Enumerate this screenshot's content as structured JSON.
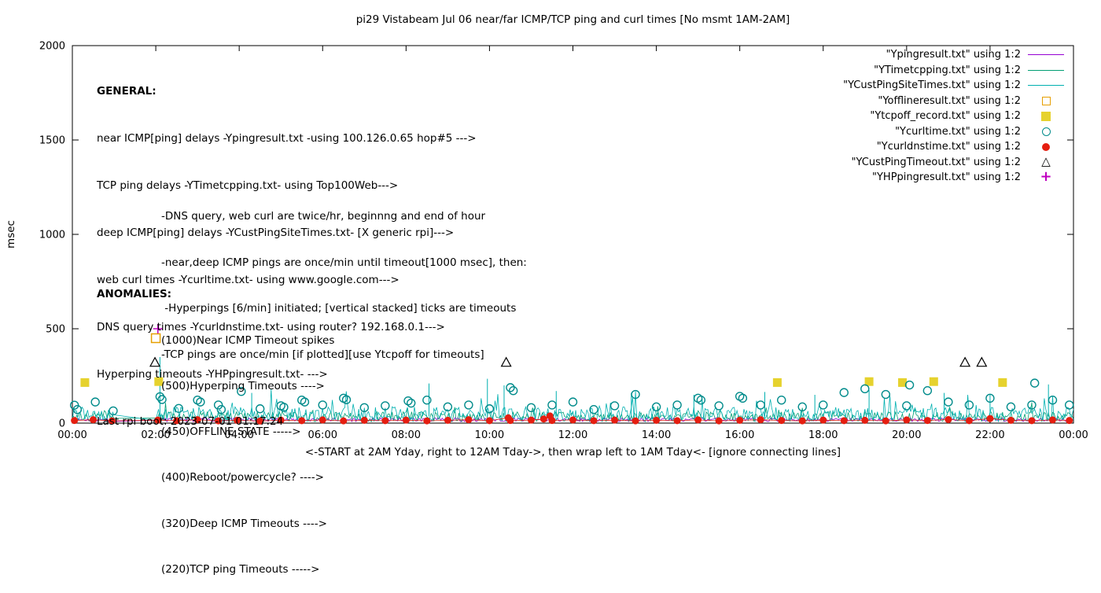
{
  "title": "pi29 Vistabeam Jul 06  near/far ICMP/TCP ping and curl times [No msmt 1AM-2AM]",
  "ylabel": "msec",
  "xlabel": "<-START at 2AM Yday, right to 12AM Tday->, then wrap left to 1AM Tday<- [ignore connecting lines]",
  "general": {
    "heading": "GENERAL:",
    "lines": [
      "near ICMP[ping] delays -Ypingresult.txt -using 100.126.0.65 hop#5 --->",
      "TCP ping delays -YTimetcpping.txt- using Top100Web--->",
      "deep ICMP[ping] delays -YCustPingSiteTimes.txt- [X generic rpi]--->",
      "web curl times -Ycurltime.txt- using www.google.com--->",
      "DNS query times -Ycurldnstime.txt- using router? 192.168.0.1--->",
      "Hyperping timeouts -YHPpingresult.txt- --->",
      "Last rpi boot: 2023-07-01 01:17:24"
    ],
    "indented": [
      "-DNS query, web curl are twice/hr, beginnng and end of hour",
      "-near,deep ICMP pings are once/min until timeout[1000 msec], then:",
      " -Hyperpings [6/min] initiated; [vertical stacked] ticks are timeouts",
      "-TCP pings are once/min [if plotted][use Ytcpoff for timeouts]"
    ]
  },
  "anomalies": {
    "heading": "ANOMALIES:",
    "lines": [
      "(1000)Near ICMP Timeout spikes",
      "(500)Hyperping Timeouts ---->",
      "(450)OFFLINE STATE ----->",
      "(400)Reboot/powercycle? ---->",
      "(320)Deep ICMP Timeouts ---->",
      "(220)TCP ping Timeouts ----->"
    ]
  },
  "legend": [
    {
      "label": "\"Ypingresult.txt\" using 1:2",
      "symbol": "line",
      "color": "#9400d3"
    },
    {
      "label": "\"YTimetcpping.txt\" using 1:2",
      "symbol": "line",
      "color": "#009e73"
    },
    {
      "label": "\"YCustPingSiteTimes.txt\" using 1:2",
      "symbol": "line",
      "color": "#00b0b0"
    },
    {
      "label": "\"Yofflineresult.txt\" using 1:2",
      "symbol": "open-square",
      "color": "#e69f00"
    },
    {
      "label": "\"Ytcpoff_record.txt\" using 1:2",
      "symbol": "filled-square",
      "color": "#e6d22e"
    },
    {
      "label": "\"Ycurltime.txt\" using 1:2",
      "symbol": "open-circle",
      "color": "#008b8b"
    },
    {
      "label": "\"Ycurldnstime.txt\" using 1:2",
      "symbol": "filled-circle",
      "color": "#e51e10"
    },
    {
      "label": "\"YCustPingTimeout.txt\" using 1:2",
      "symbol": "open-triangle",
      "color": "#000000"
    },
    {
      "label": "\"YHPpingresult.txt\" using 1:2",
      "symbol": "plus",
      "color": "#bf00bf"
    }
  ],
  "chart_data": {
    "type": "line",
    "title": "pi29 Vistabeam Jul 06  near/far ICMP/TCP ping and curl times [No msmt 1AM-2AM]",
    "xlabel": "<-START at 2AM Yday, right to 12AM Tday->, then wrap left to 1AM Tday<- [ignore connecting lines]",
    "ylabel": "msec",
    "ylim": [
      0,
      2000
    ],
    "xlim_hours": [
      0,
      24
    ],
    "grid": false,
    "legend_position": "top-right",
    "x_tick_labels": [
      "00:00",
      "02:00",
      "04:00",
      "06:00",
      "08:00",
      "10:00",
      "12:00",
      "14:00",
      "16:00",
      "18:00",
      "20:00",
      "22:00",
      "00:00"
    ],
    "y_tick_labels": [
      0,
      500,
      1000,
      1500,
      2000
    ],
    "no_measurement_gap_hours": [
      1,
      2
    ],
    "series": [
      {
        "name": "Ypingresult.txt",
        "color": "#9400d3",
        "baseline": 18,
        "noise": 10,
        "seed": 11
      },
      {
        "name": "YTimetcpping.txt",
        "color": "#009e73",
        "baseline": 34,
        "noise": 26,
        "burst_prob": 0.05,
        "burst_amp": 70,
        "seed": 23
      },
      {
        "name": "YCustPingSiteTimes.txt",
        "color": "#00b0b0",
        "baseline": 46,
        "noise": 40,
        "burst_prob": 0.07,
        "burst_amp": 110,
        "seed": 37,
        "spikes": [
          [
            2.1,
            350
          ],
          [
            4.3,
            160
          ],
          [
            8.55,
            210
          ],
          [
            9.95,
            235
          ],
          [
            10.35,
            200
          ],
          [
            11.6,
            170
          ],
          [
            13.4,
            160
          ],
          [
            14.9,
            150
          ],
          [
            16.6,
            165
          ],
          [
            17.8,
            150
          ],
          [
            19.1,
            175
          ],
          [
            20.9,
            160
          ],
          [
            22.0,
            150
          ],
          [
            23.4,
            205
          ]
        ]
      }
    ],
    "markers": [
      {
        "name": "Yofflineresult.txt",
        "shape": "open-square",
        "color": "#e69f00",
        "points": [
          [
            2.0,
            450
          ]
        ]
      },
      {
        "name": "Ytcpoff_record.txt",
        "shape": "filled-square",
        "color": "#e6d22e",
        "points": [
          [
            0.3,
            215
          ],
          [
            2.07,
            220
          ],
          [
            16.9,
            215
          ],
          [
            19.1,
            220
          ],
          [
            19.9,
            215
          ],
          [
            20.65,
            220
          ],
          [
            22.3,
            215
          ]
        ]
      },
      {
        "name": "Ycurltime.txt",
        "shape": "open-circle",
        "color": "#008b8b",
        "points": [
          [
            0.05,
            95
          ],
          [
            0.12,
            72
          ],
          [
            0.55,
            112
          ],
          [
            0.98,
            65
          ],
          [
            2.1,
            140
          ],
          [
            2.15,
            125
          ],
          [
            2.55,
            78
          ],
          [
            3.0,
            122
          ],
          [
            3.07,
            112
          ],
          [
            3.5,
            96
          ],
          [
            3.57,
            72
          ],
          [
            4.05,
            168
          ],
          [
            4.5,
            76
          ],
          [
            5.0,
            92
          ],
          [
            5.07,
            84
          ],
          [
            5.5,
            122
          ],
          [
            5.57,
            112
          ],
          [
            6.0,
            96
          ],
          [
            6.5,
            132
          ],
          [
            6.57,
            124
          ],
          [
            7.0,
            82
          ],
          [
            7.5,
            92
          ],
          [
            8.05,
            118
          ],
          [
            8.12,
            106
          ],
          [
            8.5,
            122
          ],
          [
            9.0,
            86
          ],
          [
            9.5,
            96
          ],
          [
            10.0,
            76
          ],
          [
            10.5,
            188
          ],
          [
            10.57,
            172
          ],
          [
            11.0,
            82
          ],
          [
            11.5,
            96
          ],
          [
            12.0,
            112
          ],
          [
            12.5,
            72
          ],
          [
            13.0,
            92
          ],
          [
            13.5,
            152
          ],
          [
            14.0,
            86
          ],
          [
            14.5,
            96
          ],
          [
            15.0,
            132
          ],
          [
            15.07,
            122
          ],
          [
            15.5,
            92
          ],
          [
            16.0,
            142
          ],
          [
            16.07,
            132
          ],
          [
            16.5,
            96
          ],
          [
            17.0,
            122
          ],
          [
            17.5,
            86
          ],
          [
            18.0,
            96
          ],
          [
            18.5,
            162
          ],
          [
            19.0,
            182
          ],
          [
            19.5,
            152
          ],
          [
            20.0,
            92
          ],
          [
            20.07,
            202
          ],
          [
            20.5,
            172
          ],
          [
            21.0,
            112
          ],
          [
            21.5,
            96
          ],
          [
            22.0,
            132
          ],
          [
            22.5,
            86
          ],
          [
            23.0,
            96
          ],
          [
            23.07,
            212
          ],
          [
            23.5,
            122
          ],
          [
            23.9,
            96
          ]
        ]
      },
      {
        "name": "Ycurldnstime.txt",
        "shape": "filled-circle",
        "color": "#e51e10",
        "connect": true,
        "points": [
          [
            0.05,
            14
          ],
          [
            0.5,
            18
          ],
          [
            0.95,
            12
          ],
          [
            2.05,
            16
          ],
          [
            2.5,
            13
          ],
          [
            3.0,
            18
          ],
          [
            3.5,
            12
          ],
          [
            3.95,
            15
          ],
          [
            4.5,
            11
          ],
          [
            5.0,
            16
          ],
          [
            5.5,
            13
          ],
          [
            6.0,
            17
          ],
          [
            6.5,
            12
          ],
          [
            7.0,
            15
          ],
          [
            7.5,
            13
          ],
          [
            8.0,
            16
          ],
          [
            8.5,
            12
          ],
          [
            9.0,
            15
          ],
          [
            9.5,
            18
          ],
          [
            10.0,
            13
          ],
          [
            10.45,
            28
          ],
          [
            10.5,
            14
          ],
          [
            11.0,
            16
          ],
          [
            11.3,
            22
          ],
          [
            11.45,
            38
          ],
          [
            11.5,
            14
          ],
          [
            12.0,
            17
          ],
          [
            12.5,
            13
          ],
          [
            13.0,
            16
          ],
          [
            13.5,
            12
          ],
          [
            14.0,
            15
          ],
          [
            14.5,
            13
          ],
          [
            15.0,
            17
          ],
          [
            15.5,
            12
          ],
          [
            16.0,
            15
          ],
          [
            16.5,
            18
          ],
          [
            17.0,
            14
          ],
          [
            17.5,
            12
          ],
          [
            18.0,
            16
          ],
          [
            18.5,
            13
          ],
          [
            19.0,
            15
          ],
          [
            19.5,
            12
          ],
          [
            20.0,
            17
          ],
          [
            20.5,
            14
          ],
          [
            21.0,
            19
          ],
          [
            21.5,
            13
          ],
          [
            22.0,
            24
          ],
          [
            22.5,
            15
          ],
          [
            23.0,
            13
          ],
          [
            23.5,
            17
          ],
          [
            23.9,
            14
          ]
        ]
      },
      {
        "name": "YCustPingTimeout.txt",
        "shape": "open-triangle",
        "color": "#000000",
        "points": [
          [
            1.98,
            320
          ],
          [
            10.4,
            320
          ],
          [
            21.4,
            320
          ],
          [
            21.8,
            320
          ]
        ]
      },
      {
        "name": "YHPpingresult.txt",
        "shape": "plus",
        "color": "#bf00bf",
        "points": [
          [
            2.05,
            500
          ]
        ]
      }
    ]
  }
}
